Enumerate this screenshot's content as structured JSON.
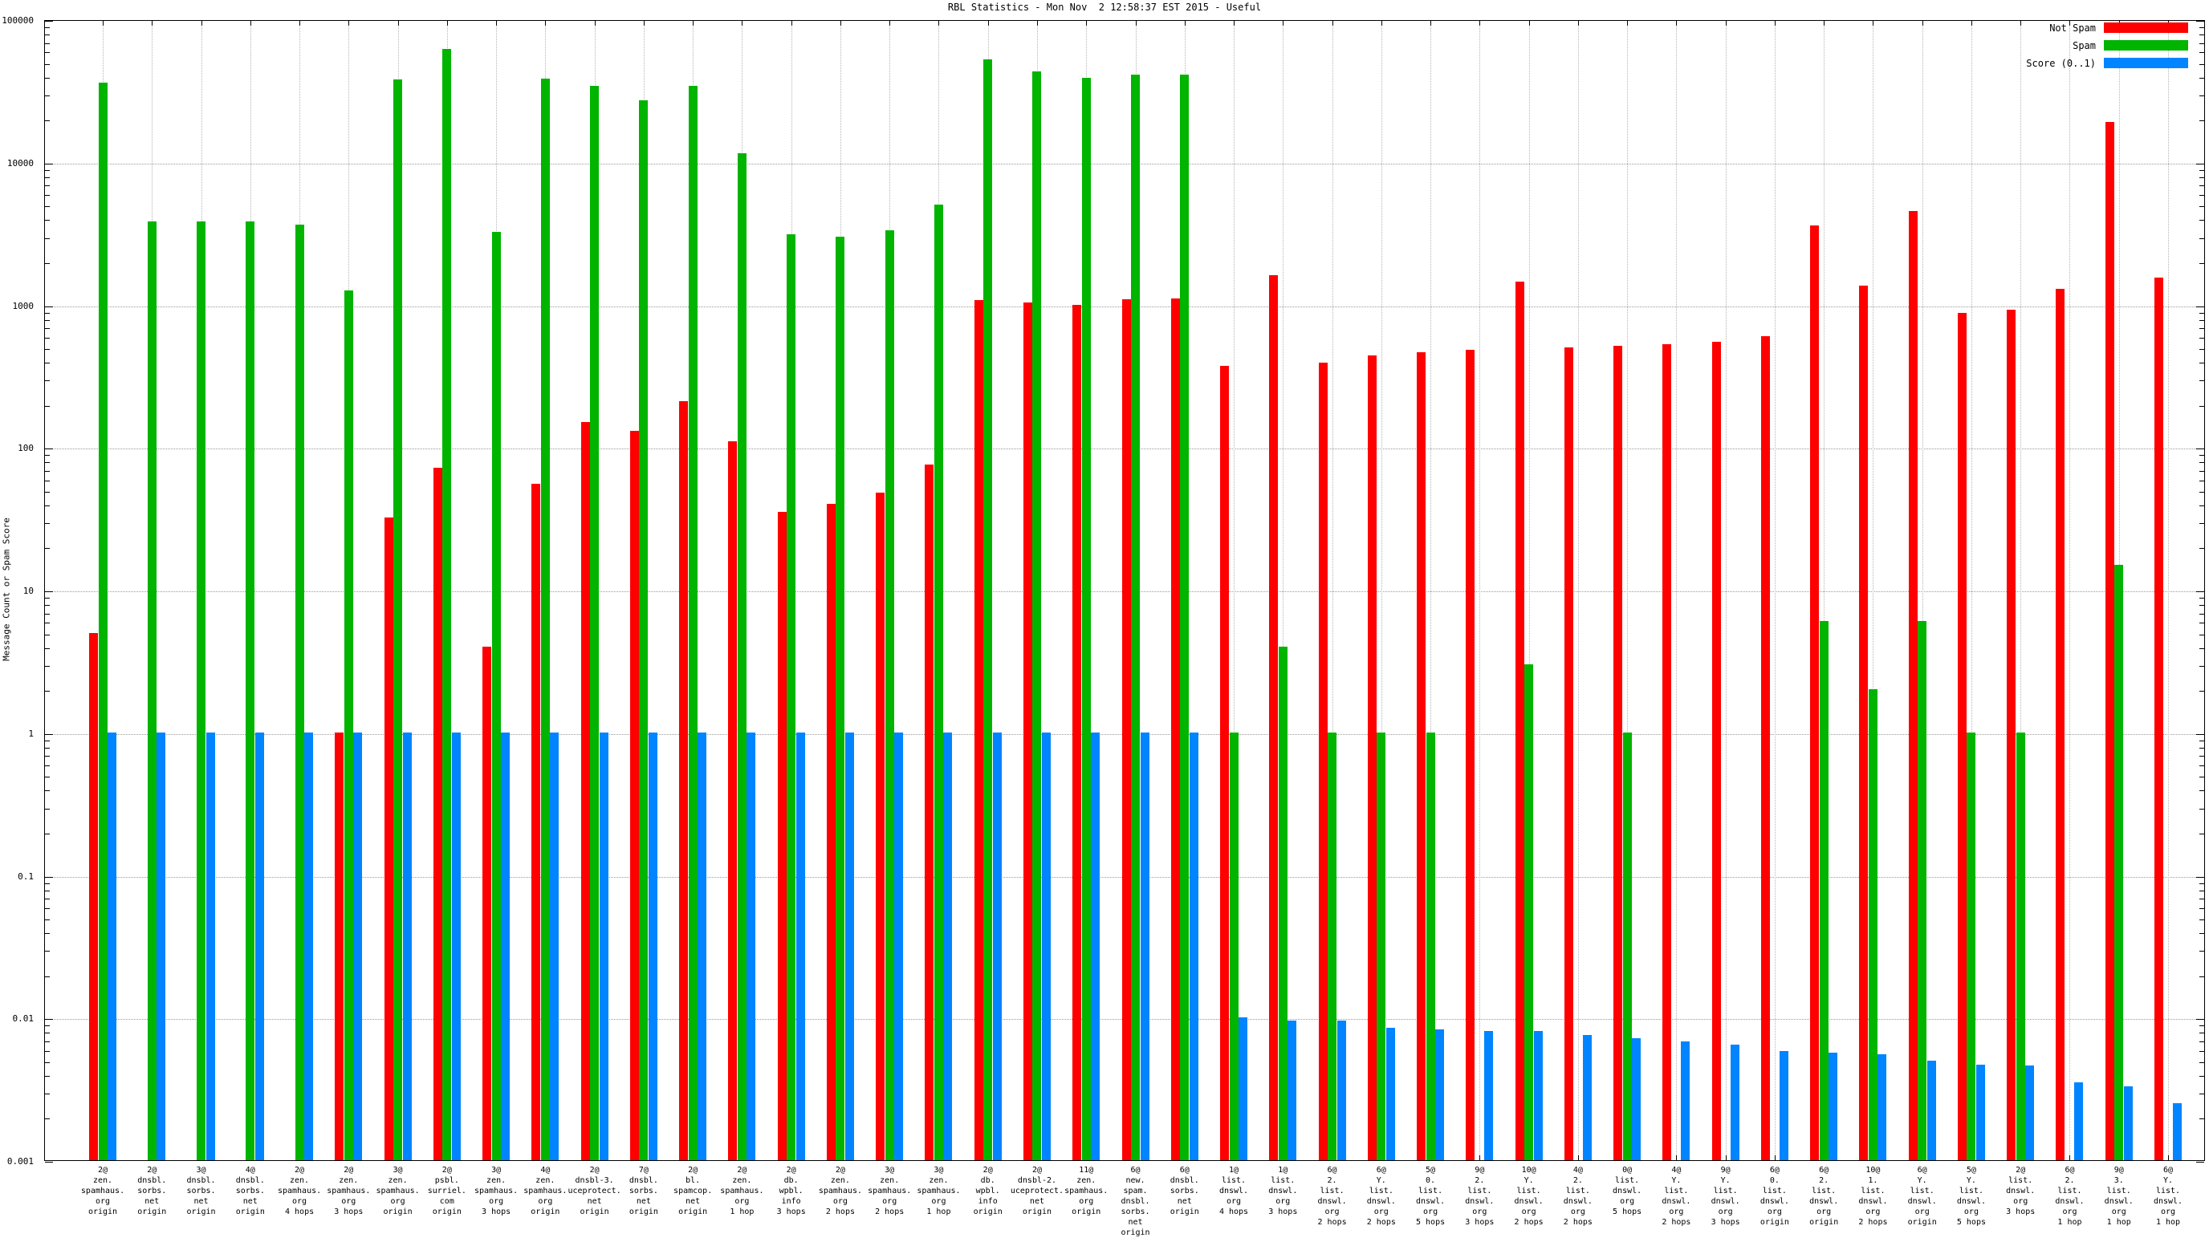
{
  "title": "RBL Statistics - Mon Nov  2 12:58:37 EST 2015 - Useful",
  "y_axis": {
    "label": "Message Count or Spam Score",
    "ticks": [
      "100000",
      "10000",
      "1000",
      "100",
      "10",
      "1",
      "0.1",
      "0.01",
      "0.001"
    ]
  },
  "legend": [
    {
      "label": "Not Spam",
      "color": "#ff0000"
    },
    {
      "label": "Spam",
      "color": "#00b400"
    },
    {
      "label": "Score (0..1)",
      "color": "#0084ff"
    }
  ],
  "chart_data": {
    "type": "bar",
    "scale": "log",
    "ylim": [
      0.001,
      100000
    ],
    "grid": true,
    "legend_position": "top-right",
    "series_names": [
      "Not Spam",
      "Spam",
      "Score (0..1)"
    ],
    "colors": {
      "not_spam": "#ff0000",
      "spam": "#00b400",
      "score": "#0084ff"
    },
    "groups": [
      {
        "label_lines": [
          "2@",
          "zen.",
          "spamhaus.",
          "org",
          "origin"
        ],
        "not_spam": 5,
        "spam": 36000,
        "score": 1
      },
      {
        "label_lines": [
          "2@",
          "dnsbl.",
          "sorbs.",
          "net",
          "origin"
        ],
        "not_spam": 0,
        "spam": 3800,
        "score": 1
      },
      {
        "label_lines": [
          "3@",
          "dnsbl.",
          "sorbs.",
          "net",
          "origin"
        ],
        "not_spam": 0,
        "spam": 3800,
        "score": 1
      },
      {
        "label_lines": [
          "4@",
          "dnsbl.",
          "sorbs.",
          "net",
          "origin"
        ],
        "not_spam": 0,
        "spam": 3800,
        "score": 1
      },
      {
        "label_lines": [
          "2@",
          "zen.",
          "spamhaus.",
          "org",
          "4 hops"
        ],
        "not_spam": 0,
        "spam": 3650,
        "score": 1
      },
      {
        "label_lines": [
          "2@",
          "zen.",
          "spamhaus.",
          "org",
          "3 hops"
        ],
        "not_spam": 1,
        "spam": 1250,
        "score": 1
      },
      {
        "label_lines": [
          "3@",
          "zen.",
          "spamhaus.",
          "org",
          "origin"
        ],
        "not_spam": 32,
        "spam": 38000,
        "score": 1
      },
      {
        "label_lines": [
          "2@",
          "psbl.",
          "surriel.",
          "com",
          "origin"
        ],
        "not_spam": 72,
        "spam": 62000,
        "score": 1
      },
      {
        "label_lines": [
          "3@",
          "zen.",
          "spamhaus.",
          "org",
          "3 hops"
        ],
        "not_spam": 4,
        "spam": 3250,
        "score": 1
      },
      {
        "label_lines": [
          "4@",
          "zen.",
          "spamhaus.",
          "org",
          "origin"
        ],
        "not_spam": 55,
        "spam": 38500,
        "score": 1
      },
      {
        "label_lines": [
          "2@",
          "dnsbl-3.",
          "uceprotect.",
          "net",
          "origin"
        ],
        "not_spam": 150,
        "spam": 34000,
        "score": 1
      },
      {
        "label_lines": [
          "7@",
          "dnsbl.",
          "sorbs.",
          "net",
          "origin"
        ],
        "not_spam": 130,
        "spam": 27000,
        "score": 1
      },
      {
        "label_lines": [
          "2@",
          "bl.",
          "spamcop.",
          "net",
          "origin"
        ],
        "not_spam": 210,
        "spam": 34000,
        "score": 1
      },
      {
        "label_lines": [
          "2@",
          "zen.",
          "spamhaus.",
          "org",
          "1 hop"
        ],
        "not_spam": 110,
        "spam": 11500,
        "score": 1
      },
      {
        "label_lines": [
          "2@",
          "db.",
          "wpbl.",
          "info",
          "3 hops"
        ],
        "not_spam": 35,
        "spam": 3100,
        "score": 1
      },
      {
        "label_lines": [
          "2@",
          "zen.",
          "spamhaus.",
          "org",
          "2 hops"
        ],
        "not_spam": 40,
        "spam": 3000,
        "score": 1
      },
      {
        "label_lines": [
          "3@",
          "zen.",
          "spamhaus.",
          "org",
          "2 hops"
        ],
        "not_spam": 48,
        "spam": 3300,
        "score": 1
      },
      {
        "label_lines": [
          "3@",
          "zen.",
          "spamhaus.",
          "org",
          "1 hop"
        ],
        "not_spam": 75,
        "spam": 5000,
        "score": 1
      },
      {
        "label_lines": [
          "2@",
          "db.",
          "wpbl.",
          "info",
          "origin"
        ],
        "not_spam": 1070,
        "spam": 52000,
        "score": 1
      },
      {
        "label_lines": [
          "2@",
          "dnsbl-2.",
          "uceprotect.",
          "net",
          "origin"
        ],
        "not_spam": 1030,
        "spam": 43000,
        "score": 1
      },
      {
        "label_lines": [
          "11@",
          "zen.",
          "spamhaus.",
          "org",
          "origin"
        ],
        "not_spam": 1000,
        "spam": 39000,
        "score": 1
      },
      {
        "label_lines": [
          "6@",
          "new.",
          "spam.",
          "dnsbl.",
          "sorbs.",
          "net",
          "origin"
        ],
        "not_spam": 1090,
        "spam": 41000,
        "score": 1
      },
      {
        "label_lines": [
          "6@",
          "dnsbl.",
          "sorbs.",
          "net",
          "origin"
        ],
        "not_spam": 1100,
        "spam": 41000,
        "score": 1
      },
      {
        "label_lines": [
          "1@",
          "list.",
          "dnswl.",
          "org",
          "4 hops"
        ],
        "not_spam": 370,
        "spam": 1,
        "score": 0.01
      },
      {
        "label_lines": [
          "1@",
          "list.",
          "dnswl.",
          "org",
          "3 hops"
        ],
        "not_spam": 1600,
        "spam": 4,
        "score": 0.0095
      },
      {
        "label_lines": [
          "6@",
          "2.",
          "list.",
          "dnswl.",
          "org",
          "2 hops"
        ],
        "not_spam": 390,
        "spam": 1,
        "score": 0.0095
      },
      {
        "label_lines": [
          "6@",
          "Y.",
          "list.",
          "dnswl.",
          "org",
          "2 hops"
        ],
        "not_spam": 440,
        "spam": 1,
        "score": 0.0085
      },
      {
        "label_lines": [
          "5@",
          "0.",
          "list.",
          "dnswl.",
          "org",
          "5 hops"
        ],
        "not_spam": 460,
        "spam": 1,
        "score": 0.0083
      },
      {
        "label_lines": [
          "9@",
          "2.",
          "list.",
          "dnswl.",
          "org",
          "3 hops"
        ],
        "not_spam": 480,
        "spam": 0,
        "score": 0.008
      },
      {
        "label_lines": [
          "10@",
          "Y.",
          "list.",
          "dnswl.",
          "org",
          "2 hops"
        ],
        "not_spam": 1450,
        "spam": 3,
        "score": 0.008
      },
      {
        "label_lines": [
          "4@",
          "2.",
          "list.",
          "dnswl.",
          "org",
          "2 hops"
        ],
        "not_spam": 500,
        "spam": 0,
        "score": 0.0075
      },
      {
        "label_lines": [
          "0@",
          "list.",
          "dnswl.",
          "org",
          "5 hops"
        ],
        "not_spam": 510,
        "spam": 1,
        "score": 0.0072
      },
      {
        "label_lines": [
          "4@",
          "Y.",
          "list.",
          "dnswl.",
          "org",
          "2 hops"
        ],
        "not_spam": 530,
        "spam": 0,
        "score": 0.0068
      },
      {
        "label_lines": [
          "9@",
          "Y.",
          "list.",
          "dnswl.",
          "org",
          "3 hops"
        ],
        "not_spam": 550,
        "spam": 0,
        "score": 0.0065
      },
      {
        "label_lines": [
          "6@",
          "0.",
          "list.",
          "dnswl.",
          "org",
          "origin"
        ],
        "not_spam": 600,
        "spam": 0,
        "score": 0.0058
      },
      {
        "label_lines": [
          "6@",
          "2.",
          "list.",
          "dnswl.",
          "org",
          "origin"
        ],
        "not_spam": 3600,
        "spam": 6,
        "score": 0.0057
      },
      {
        "label_lines": [
          "10@",
          "1.",
          "list.",
          "dnswl.",
          "org",
          "2 hops"
        ],
        "not_spam": 1350,
        "spam": 2,
        "score": 0.0055
      },
      {
        "label_lines": [
          "6@",
          "Y.",
          "list.",
          "dnswl.",
          "org",
          "origin"
        ],
        "not_spam": 4500,
        "spam": 6,
        "score": 0.005
      },
      {
        "label_lines": [
          "5@",
          "Y.",
          "list.",
          "dnswl.",
          "org",
          "5 hops"
        ],
        "not_spam": 875,
        "spam": 1,
        "score": 0.0047
      },
      {
        "label_lines": [
          "2@",
          "list.",
          "dnswl.",
          "org",
          "3 hops"
        ],
        "not_spam": 920,
        "spam": 1,
        "score": 0.0046
      },
      {
        "label_lines": [
          "6@",
          "2.",
          "list.",
          "dnswl.",
          "org",
          "1 hop"
        ],
        "not_spam": 1280,
        "spam": 0,
        "score": 0.0035
      },
      {
        "label_lines": [
          "9@",
          "3.",
          "list.",
          "dnswl.",
          "org",
          "1 hop"
        ],
        "not_spam": 19000,
        "spam": 15,
        "score": 0.0033
      },
      {
        "label_lines": [
          "6@",
          "Y.",
          "list.",
          "dnswl.",
          "org",
          "1 hop"
        ],
        "not_spam": 1550,
        "spam": 0,
        "score": 0.0025
      }
    ]
  }
}
